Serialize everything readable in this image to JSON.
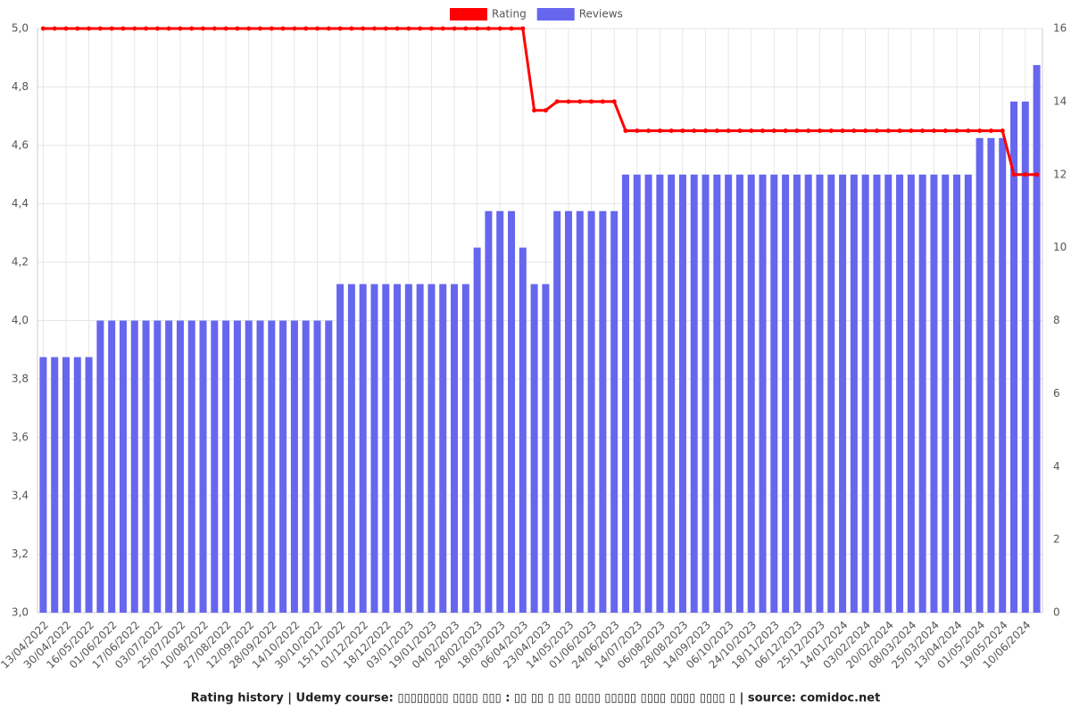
{
  "chart_data": {
    "type": "combo",
    "title": "Rating history | Udemy course: ▯▯▯▯▯▯▯▯ ▯▯▯▯ ▯▯▯ : ▯▯ ▯▯ ▯ ▯▯ ▯▯▯▯ ▯▯▯▯▯ ▯▯▯▯ ▯▯▯▯ ▯▯▯▯ ▯ | source: comidoc.net",
    "categories": [
      "13/04/2022",
      null,
      "30/04/2022",
      null,
      "16/05/2022",
      null,
      "01/06/2022",
      null,
      "17/06/2022",
      null,
      "03/07/2022",
      null,
      "25/07/2022",
      null,
      "10/08/2022",
      null,
      "27/08/2022",
      null,
      "12/09/2022",
      null,
      "28/09/2022",
      null,
      "14/10/2022",
      null,
      "30/10/2022",
      null,
      "15/11/2022",
      null,
      "01/12/2022",
      null,
      "18/12/2022",
      null,
      "03/01/2023",
      null,
      "19/01/2023",
      null,
      "04/02/2023",
      null,
      "28/02/2023",
      null,
      "18/03/2023",
      null,
      "06/04/2023",
      null,
      "23/04/2023",
      null,
      "14/05/2023",
      null,
      "01/06/2023",
      null,
      "24/06/2023",
      null,
      "14/07/2023",
      null,
      "06/08/2023",
      null,
      "28/08/2023",
      null,
      "14/09/2023",
      null,
      "06/10/2023",
      null,
      "24/10/2023",
      null,
      "18/11/2023",
      null,
      "06/12/2023",
      null,
      "25/12/2023",
      null,
      "14/01/2024",
      null,
      "03/02/2024",
      null,
      "20/02/2024",
      null,
      "08/03/2024",
      null,
      "25/03/2024",
      null,
      "13/04/2024",
      null,
      "01/05/2024",
      null,
      "19/05/2024",
      null,
      "10/06/2024",
      null
    ],
    "series": [
      {
        "name": "Rating",
        "type": "line",
        "color": "#ff0000",
        "values": [
          5,
          5,
          5,
          5,
          5,
          5,
          5,
          5,
          5,
          5,
          5,
          5,
          5,
          5,
          5,
          5,
          5,
          5,
          5,
          5,
          5,
          5,
          5,
          5,
          5,
          5,
          5,
          5,
          5,
          5,
          5,
          5,
          5,
          5,
          5,
          5,
          5,
          5,
          5,
          5,
          5,
          5,
          5,
          4.72,
          4.72,
          4.75,
          4.75,
          4.75,
          4.75,
          4.75,
          4.75,
          4.65,
          4.65,
          4.65,
          4.65,
          4.65,
          4.65,
          4.65,
          4.65,
          4.65,
          4.65,
          4.65,
          4.65,
          4.65,
          4.65,
          4.65,
          4.65,
          4.65,
          4.65,
          4.65,
          4.65,
          4.65,
          4.65,
          4.65,
          4.65,
          4.65,
          4.65,
          4.65,
          4.65,
          4.65,
          4.65,
          4.65,
          4.65,
          4.65,
          4.65,
          4.5,
          4.5,
          4.5
        ]
      },
      {
        "name": "Reviews",
        "type": "bar",
        "axis": "y2",
        "color": "#6666ee",
        "values": [
          7,
          7,
          7,
          7,
          7,
          8,
          8,
          8,
          8,
          8,
          8,
          8,
          8,
          8,
          8,
          8,
          8,
          8,
          8,
          8,
          8,
          8,
          8,
          8,
          8,
          8,
          9,
          9,
          9,
          9,
          9,
          9,
          9,
          9,
          9,
          9,
          9,
          9,
          10,
          11,
          11,
          11,
          10,
          9,
          9,
          11,
          11,
          11,
          11,
          11,
          11,
          12,
          12,
          12,
          12,
          12,
          12,
          12,
          12,
          12,
          12,
          12,
          12,
          12,
          12,
          12,
          12,
          12,
          12,
          12,
          12,
          12,
          12,
          12,
          12,
          12,
          12,
          12,
          12,
          12,
          12,
          12,
          13,
          13,
          13,
          14,
          14,
          15
        ]
      }
    ],
    "ylim": [
      3,
      5
    ],
    "yticks": [
      {
        "value": 3,
        "label": "3,0"
      },
      {
        "value": 3.2,
        "label": "3,2"
      },
      {
        "value": 3.4,
        "label": "3,4"
      },
      {
        "value": 3.6,
        "label": "3,6"
      },
      {
        "value": 3.8,
        "label": "3,8"
      },
      {
        "value": 4,
        "label": "4,0"
      },
      {
        "value": 4.2,
        "label": "4,2"
      },
      {
        "value": 4.4,
        "label": "4,4"
      },
      {
        "value": 4.6,
        "label": "4,6"
      },
      {
        "value": 4.8,
        "label": "4,8"
      },
      {
        "value": 5,
        "label": "5,0"
      }
    ],
    "y2lim": [
      0,
      16
    ],
    "y2ticks": [
      0,
      2,
      4,
      6,
      8,
      10,
      12,
      14,
      16
    ],
    "grid": true
  }
}
